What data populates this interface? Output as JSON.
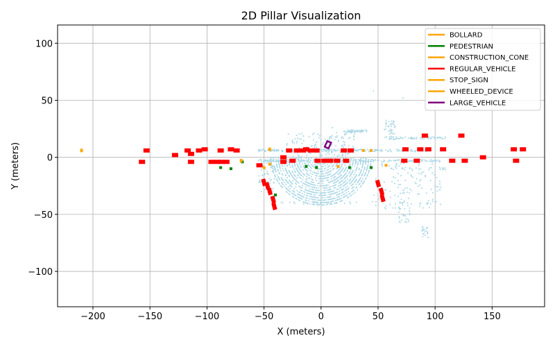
{
  "chart_data": {
    "type": "scatter",
    "title": "2D Pillar Visualization",
    "xlabel": "X (meters)",
    "ylabel": "Y (meters)",
    "xlim": [
      -231,
      196
    ],
    "ylim": [
      -131,
      116
    ],
    "xticks": [
      -200,
      -150,
      -100,
      -50,
      0,
      50,
      100,
      150
    ],
    "yticks": [
      -100,
      -50,
      0,
      50,
      100
    ],
    "xtick_labels": [
      "−200",
      "−150",
      "−100",
      "−50",
      "0",
      "50",
      "100",
      "150"
    ],
    "ytick_labels": [
      "−100",
      "−50",
      "0",
      "50",
      "100"
    ],
    "grid": true,
    "legend_position": "top-right",
    "point_cloud_color": "#add8e6",
    "legend": [
      {
        "name": "BOLLARD",
        "color": "#ffa500"
      },
      {
        "name": "PEDESTRIAN",
        "color": "#008000"
      },
      {
        "name": "CONSTRUCTION_CONE",
        "color": "#ffa500"
      },
      {
        "name": "REGULAR_VEHICLE",
        "color": "#ff0000"
      },
      {
        "name": "STOP_SIGN",
        "color": "#ffa500"
      },
      {
        "name": "WHEELED_DEVICE",
        "color": "#ffa500"
      },
      {
        "name": "LARGE_VEHICLE",
        "color": "#800080"
      }
    ],
    "objects": {
      "REGULAR_VEHICLE": [
        [
          -157,
          -4
        ],
        [
          -153,
          6
        ],
        [
          -128,
          2
        ],
        [
          -117,
          6
        ],
        [
          -114,
          3
        ],
        [
          -114,
          -4
        ],
        [
          -107,
          6
        ],
        [
          -102,
          7
        ],
        [
          -96,
          -4
        ],
        [
          -91,
          -4
        ],
        [
          -87,
          -4
        ],
        [
          -88,
          6
        ],
        [
          -83,
          -4
        ],
        [
          -79,
          7
        ],
        [
          -74,
          6
        ],
        [
          -54,
          -7
        ],
        [
          -50,
          -22
        ],
        [
          -47,
          -25
        ],
        [
          -45,
          -30
        ],
        [
          -42,
          -37
        ],
        [
          -41,
          -43
        ],
        [
          -33,
          0
        ],
        [
          -33,
          -4
        ],
        [
          -28,
          6
        ],
        [
          -25,
          -3
        ],
        [
          -21,
          6
        ],
        [
          -16,
          6
        ],
        [
          -13,
          7
        ],
        [
          -9,
          6
        ],
        [
          -4,
          6
        ],
        [
          -3,
          -3
        ],
        [
          3,
          -3
        ],
        [
          8,
          -3
        ],
        [
          14,
          -3
        ],
        [
          20,
          6
        ],
        [
          22,
          -3
        ],
        [
          26,
          6
        ],
        [
          50,
          -23
        ],
        [
          53,
          -30
        ],
        [
          54,
          -36
        ],
        [
          74,
          7
        ],
        [
          73,
          -3
        ],
        [
          84,
          -3
        ],
        [
          87,
          7
        ],
        [
          91,
          19
        ],
        [
          94,
          7
        ],
        [
          107,
          7
        ],
        [
          115,
          -3
        ],
        [
          123,
          19
        ],
        [
          126,
          -3
        ],
        [
          142,
          0
        ],
        [
          169,
          7
        ],
        [
          171,
          -3
        ],
        [
          177,
          7
        ]
      ],
      "PEDESTRIAN": [
        [
          -88,
          -9
        ],
        [
          -79,
          -10
        ],
        [
          -69,
          -4
        ],
        [
          -40,
          -33
        ],
        [
          -13,
          -8
        ],
        [
          -4,
          -9
        ],
        [
          25,
          -9
        ],
        [
          44,
          -9
        ]
      ],
      "BOLLARD": [
        [
          -210,
          6
        ],
        [
          -70,
          -3
        ],
        [
          -45,
          7
        ]
      ],
      "CONSTRUCTION_CONE": [
        [
          -50,
          -9
        ],
        [
          -45,
          -6
        ],
        [
          15,
          -8
        ],
        [
          57,
          -7
        ]
      ],
      "STOP_SIGN": [
        [
          37,
          6
        ]
      ],
      "WHEELED_DEVICE": [
        [
          44,
          6
        ]
      ],
      "LARGE_VEHICLE": [
        [
          6,
          11
        ]
      ]
    }
  }
}
